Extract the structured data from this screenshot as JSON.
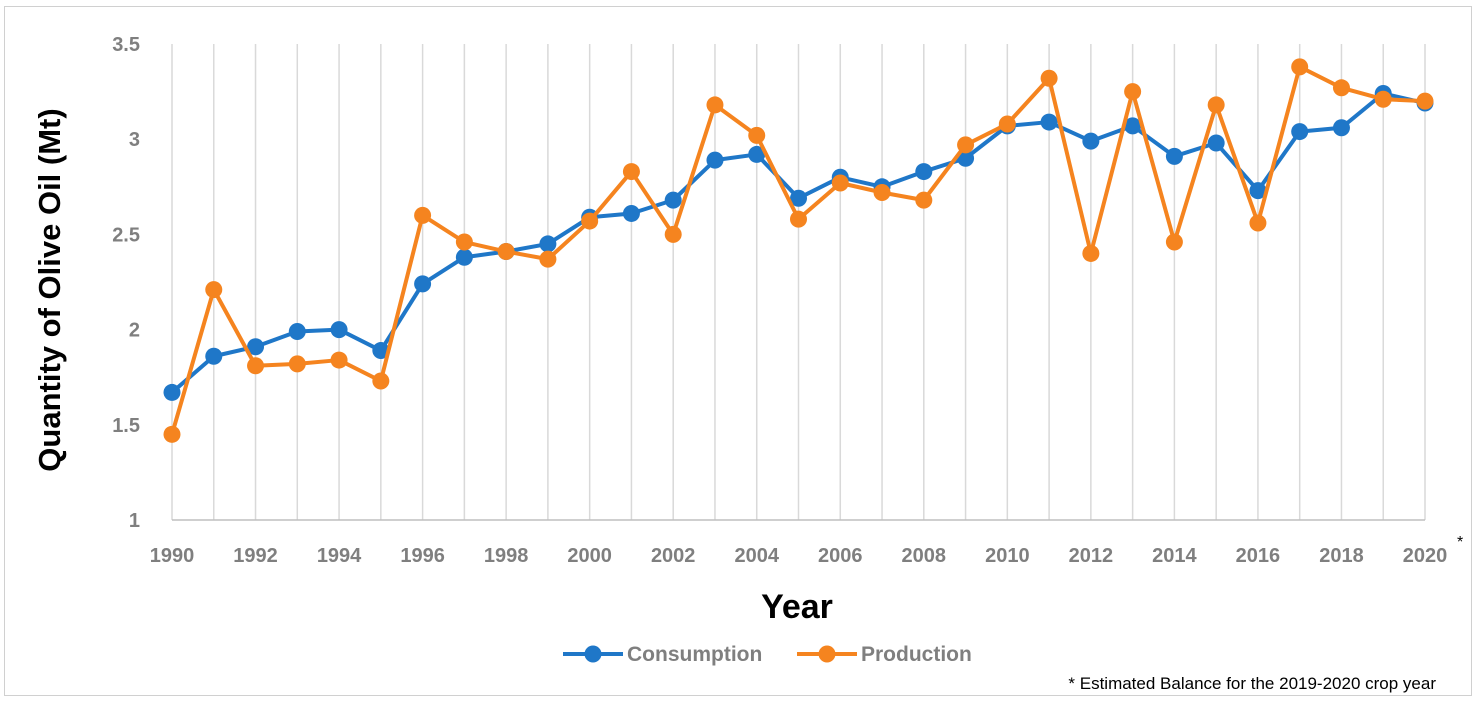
{
  "chart_data": {
    "type": "line",
    "title": "",
    "xlabel": "Year",
    "ylabel": "Quantity of Olive Oil (Mt)",
    "x": [
      1990,
      1991,
      1992,
      1993,
      1994,
      1995,
      1996,
      1997,
      1998,
      1999,
      2000,
      2001,
      2002,
      2003,
      2004,
      2005,
      2006,
      2007,
      2008,
      2009,
      2010,
      2011,
      2012,
      2013,
      2014,
      2015,
      2016,
      2017,
      2018,
      2019,
      2020
    ],
    "xticks": [
      "1990",
      "1992",
      "1994",
      "1996",
      "1998",
      "2000",
      "2002",
      "2004",
      "2006",
      "2008",
      "2010",
      "2012",
      "2014",
      "2016",
      "2018",
      "2020"
    ],
    "xtick_marker": "*",
    "ylim": [
      1,
      3.5
    ],
    "yticks": [
      "1",
      "1.5",
      "2",
      "2.5",
      "3",
      "3.5"
    ],
    "grid": "vertical",
    "legend_position": "bottom",
    "series": [
      {
        "name": "Consumption",
        "color": "#1f77c8",
        "values": [
          1.67,
          1.86,
          1.91,
          1.99,
          2.0,
          1.89,
          2.24,
          2.38,
          2.41,
          2.45,
          2.59,
          2.61,
          2.68,
          2.89,
          2.92,
          2.69,
          2.8,
          2.75,
          2.83,
          2.9,
          3.07,
          3.09,
          2.99,
          3.07,
          2.91,
          2.98,
          2.73,
          3.04,
          3.06,
          3.24,
          3.19
        ]
      },
      {
        "name": "Production",
        "color": "#f5841f",
        "values": [
          1.45,
          2.21,
          1.81,
          1.82,
          1.84,
          1.73,
          2.6,
          2.46,
          2.41,
          2.37,
          2.57,
          2.83,
          2.5,
          3.18,
          3.02,
          2.58,
          2.77,
          2.72,
          2.68,
          2.97,
          3.08,
          3.32,
          2.4,
          3.25,
          2.46,
          3.18,
          2.56,
          3.38,
          3.27,
          3.21,
          3.2
        ]
      }
    ],
    "footnote": "* Estimated Balance for the 2019-2020 crop year"
  }
}
